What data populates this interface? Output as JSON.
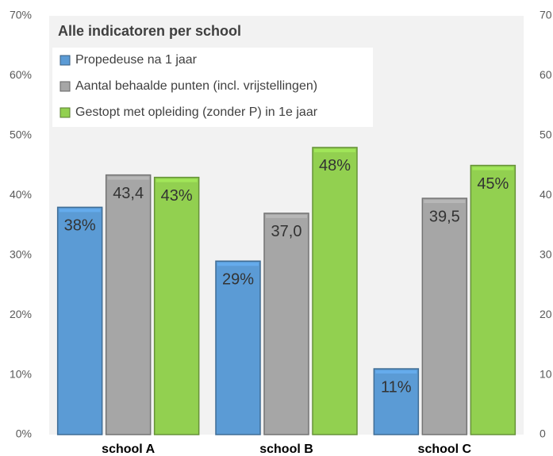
{
  "chart_data": {
    "type": "bar",
    "title": "Alle indicatoren per school",
    "categories": [
      "school A",
      "school B",
      "school C"
    ],
    "series": [
      {
        "name": "Propedeuse na 1 jaar",
        "color": "#5b9bd5",
        "values": [
          38,
          29,
          11
        ],
        "value_labels": [
          "38%",
          "29%",
          "11%"
        ]
      },
      {
        "name": "Gestopt met opleiding (zonder P) in 1e jaar",
        "color": "#92d050",
        "values": [
          43,
          48,
          45
        ],
        "value_labels": [
          "43%",
          "48%",
          "45%"
        ]
      },
      {
        "name": "Aantal behaalde punten (incl. vrijstellingen)",
        "color": "#a6a6a6",
        "axis": "y2",
        "values": [
          43.4,
          37.0,
          39.5
        ],
        "value_labels": [
          "43,4",
          "37,0",
          "39,5"
        ]
      }
    ],
    "ylim": [
      0,
      70
    ],
    "yticks": [
      {
        "value": 0,
        "label": "0%"
      },
      {
        "value": 10,
        "label": "10%"
      },
      {
        "value": 20,
        "label": "20%"
      },
      {
        "value": 30,
        "label": "30%"
      },
      {
        "value": 40,
        "label": "40%"
      },
      {
        "value": 50,
        "label": "50%"
      },
      {
        "value": 60,
        "label": "60%"
      },
      {
        "value": 70,
        "label": "70%"
      }
    ],
    "y2lim": [
      0,
      70
    ],
    "y2ticks": [
      0,
      10,
      20,
      30,
      40,
      50,
      60,
      70
    ],
    "grid": false,
    "legend": "top-left"
  }
}
